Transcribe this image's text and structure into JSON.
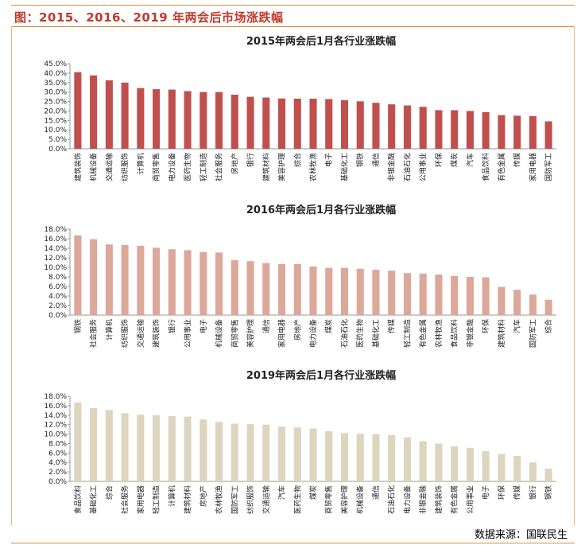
{
  "header": {
    "title": "图：2015、2016、2019 年两会后市场涨跌幅"
  },
  "source": "数据来源：国联民生",
  "chart_data": [
    {
      "type": "bar",
      "title": "2015年两会后1月各行业涨跌幅",
      "color": "#c0504d",
      "ylim": [
        0,
        45
      ],
      "ystep": 5,
      "categories": [
        "建筑装饰",
        "机械设备",
        "交通运输",
        "纺织服饰",
        "计算机",
        "商贸零售",
        "电力设备",
        "医药生物",
        "轻工制造",
        "社会服务",
        "房地产",
        "银行",
        "建筑材料",
        "美容护理",
        "综合",
        "农林牧渔",
        "电子",
        "基础化工",
        "钢铁",
        "通信",
        "非银金融",
        "石油石化",
        "公用事业",
        "环保",
        "煤炭",
        "汽车",
        "食品饮料",
        "有色金属",
        "传媒",
        "家用电器",
        "国防军工"
      ],
      "values": [
        40.5,
        38.8,
        36.2,
        35.0,
        32.1,
        31.5,
        31.3,
        30.5,
        30.0,
        30.0,
        28.6,
        27.5,
        27.1,
        26.6,
        26.5,
        26.5,
        26.3,
        25.7,
        25.1,
        24.3,
        23.5,
        22.9,
        22.2,
        20.4,
        20.4,
        20.0,
        19.4,
        17.8,
        17.5,
        17.3,
        14.5
      ]
    },
    {
      "type": "bar",
      "title": "2016年两会后1月各行业涨跌幅",
      "color": "#dba89a",
      "ylim": [
        0,
        18
      ],
      "ystep": 2,
      "categories": [
        "钢铁",
        "社会服务",
        "计算机",
        "纺织服饰",
        "交通运输",
        "建筑装饰",
        "银行",
        "公用事业",
        "电子",
        "机械设备",
        "商贸零售",
        "美容护理",
        "通信",
        "家用电器",
        "房地产",
        "电力设备",
        "煤炭",
        "石油石化",
        "医药生物",
        "基础化工",
        "传媒",
        "轻工制造",
        "有色金属",
        "农林牧渔",
        "食品饮料",
        "非银金融",
        "环保",
        "建筑材料",
        "汽车",
        "国防军工",
        "综合"
      ],
      "values": [
        16.7,
        15.9,
        14.8,
        14.7,
        14.5,
        14.1,
        13.8,
        13.6,
        13.2,
        13.1,
        11.5,
        11.3,
        10.9,
        10.7,
        10.7,
        10.2,
        9.9,
        9.9,
        9.7,
        9.5,
        9.3,
        8.8,
        8.7,
        8.5,
        8.2,
        8.0,
        7.9,
        5.9,
        5.3,
        4.3,
        3.2
      ]
    },
    {
      "type": "bar",
      "title": "2019年两会后1月各行业涨跌幅",
      "color": "#ddd5bd",
      "ylim": [
        0,
        18
      ],
      "ystep": 2,
      "categories": [
        "食品饮料",
        "基础化工",
        "综合",
        "社会服务",
        "家用电器",
        "轻工制造",
        "计算机",
        "建筑材料",
        "房地产",
        "农林牧渔",
        "国防军工",
        "纺织服饰",
        "交通运输",
        "汽车",
        "医药生物",
        "煤炭",
        "商贸零售",
        "美容护理",
        "机械设备",
        "通信",
        "石油石化",
        "电力设备",
        "非银金融",
        "建筑装饰",
        "有色金属",
        "公用事业",
        "电子",
        "环保",
        "传媒",
        "银行",
        "钢铁"
      ],
      "values": [
        16.7,
        15.5,
        15.1,
        14.4,
        14.1,
        14.0,
        13.8,
        13.7,
        13.1,
        12.6,
        12.2,
        12.1,
        12.0,
        11.6,
        11.4,
        11.2,
        10.6,
        10.2,
        10.1,
        10.0,
        9.8,
        9.3,
        8.5,
        8.0,
        7.4,
        7.1,
        6.4,
        5.8,
        5.4,
        4.0,
        2.7
      ]
    }
  ]
}
